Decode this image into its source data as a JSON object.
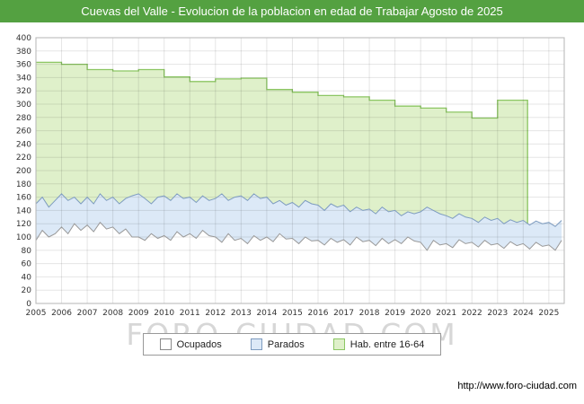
{
  "header": {
    "title": "Cuevas del Valle - Evolucion de la poblacion en edad de Trabajar Agosto de 2025",
    "bg": "#54a141"
  },
  "watermark": "FORO-CIUDAD.COM",
  "footer": {
    "url": "http://www.foro-ciudad.com"
  },
  "legend": [
    {
      "label": "Ocupados",
      "fill": "#ffffff",
      "border": "#8a8a8a"
    },
    {
      "label": "Parados",
      "fill": "#dce9f7",
      "border": "#7e9cc0"
    },
    {
      "label": "Hab. entre 16-64",
      "fill": "#dff0ca",
      "border": "#8cc663"
    }
  ],
  "chart_data": {
    "type": "area",
    "title": "Cuevas del Valle - Evolucion de la poblacion en edad de Trabajar Agosto de 2025",
    "grid": true,
    "legend_position": "bottom-center",
    "x_axis": {
      "domain": [
        2005,
        2025.6
      ],
      "tick_labels": [
        2005,
        2006,
        2007,
        2008,
        2009,
        2010,
        2011,
        2012,
        2013,
        2014,
        2015,
        2016,
        2017,
        2018,
        2019,
        2020,
        2021,
        2022,
        2023,
        2024,
        2025
      ]
    },
    "y_axis": {
      "min": 0,
      "max": 400,
      "step": 20
    },
    "series": [
      {
        "name": "Ocupados",
        "kind": "area_monthly",
        "x_start": 2005.0,
        "x_step": 0.25,
        "fill": "#ffffff",
        "line": "#999999",
        "values": [
          95,
          110,
          100,
          105,
          115,
          105,
          120,
          110,
          118,
          108,
          122,
          112,
          115,
          105,
          112,
          100,
          100,
          95,
          105,
          98,
          102,
          95,
          108,
          100,
          105,
          98,
          110,
          102,
          100,
          92,
          105,
          95,
          98,
          90,
          102,
          95,
          100,
          93,
          105,
          97,
          98,
          90,
          100,
          94,
          95,
          88,
          98,
          92,
          96,
          88,
          100,
          93,
          95,
          87,
          98,
          90,
          96,
          90,
          100,
          94,
          92,
          80,
          95,
          88,
          90,
          84,
          96,
          90,
          92,
          85,
          95,
          88,
          90,
          83,
          93,
          87,
          90,
          82,
          92,
          86,
          88,
          80,
          95
        ]
      },
      {
        "name": "Parados",
        "kind": "area_monthly",
        "stacked_on": "Ocupados",
        "x_start": 2005.0,
        "x_step": 0.25,
        "fill": "#dce9f7",
        "line": "#7e9cc0",
        "values": [
          55,
          50,
          45,
          50,
          50,
          50,
          40,
          40,
          42,
          42,
          43,
          43,
          45,
          45,
          46,
          62,
          65,
          63,
          45,
          62,
          60,
          60,
          57,
          58,
          55,
          54,
          52,
          53,
          58,
          73,
          50,
          65,
          64,
          65,
          63,
          63,
          60,
          57,
          50,
          51,
          54,
          55,
          55,
          56,
          53,
          52,
          52,
          53,
          52,
          50,
          45,
          47,
          47,
          48,
          47,
          48,
          44,
          42,
          38,
          41,
          46,
          65,
          45,
          47,
          42,
          44,
          39,
          40,
          36,
          37,
          35,
          37,
          38,
          37,
          33,
          35,
          35,
          36,
          32,
          34,
          34,
          36,
          30
        ]
      },
      {
        "name": "Hab. entre 16-64",
        "kind": "step_area_annual",
        "x_end": 2024.17,
        "fill": "#dff0ca",
        "line": "#8cc663",
        "years": [
          2005,
          2006,
          2007,
          2008,
          2009,
          2010,
          2011,
          2012,
          2013,
          2014,
          2015,
          2016,
          2017,
          2018,
          2019,
          2020,
          2021,
          2022,
          2023,
          2024
        ],
        "values": [
          363,
          360,
          352,
          350,
          352,
          341,
          334,
          338,
          339,
          322,
          318,
          313,
          311,
          306,
          297,
          294,
          288,
          279,
          306,
          306
        ]
      }
    ]
  }
}
